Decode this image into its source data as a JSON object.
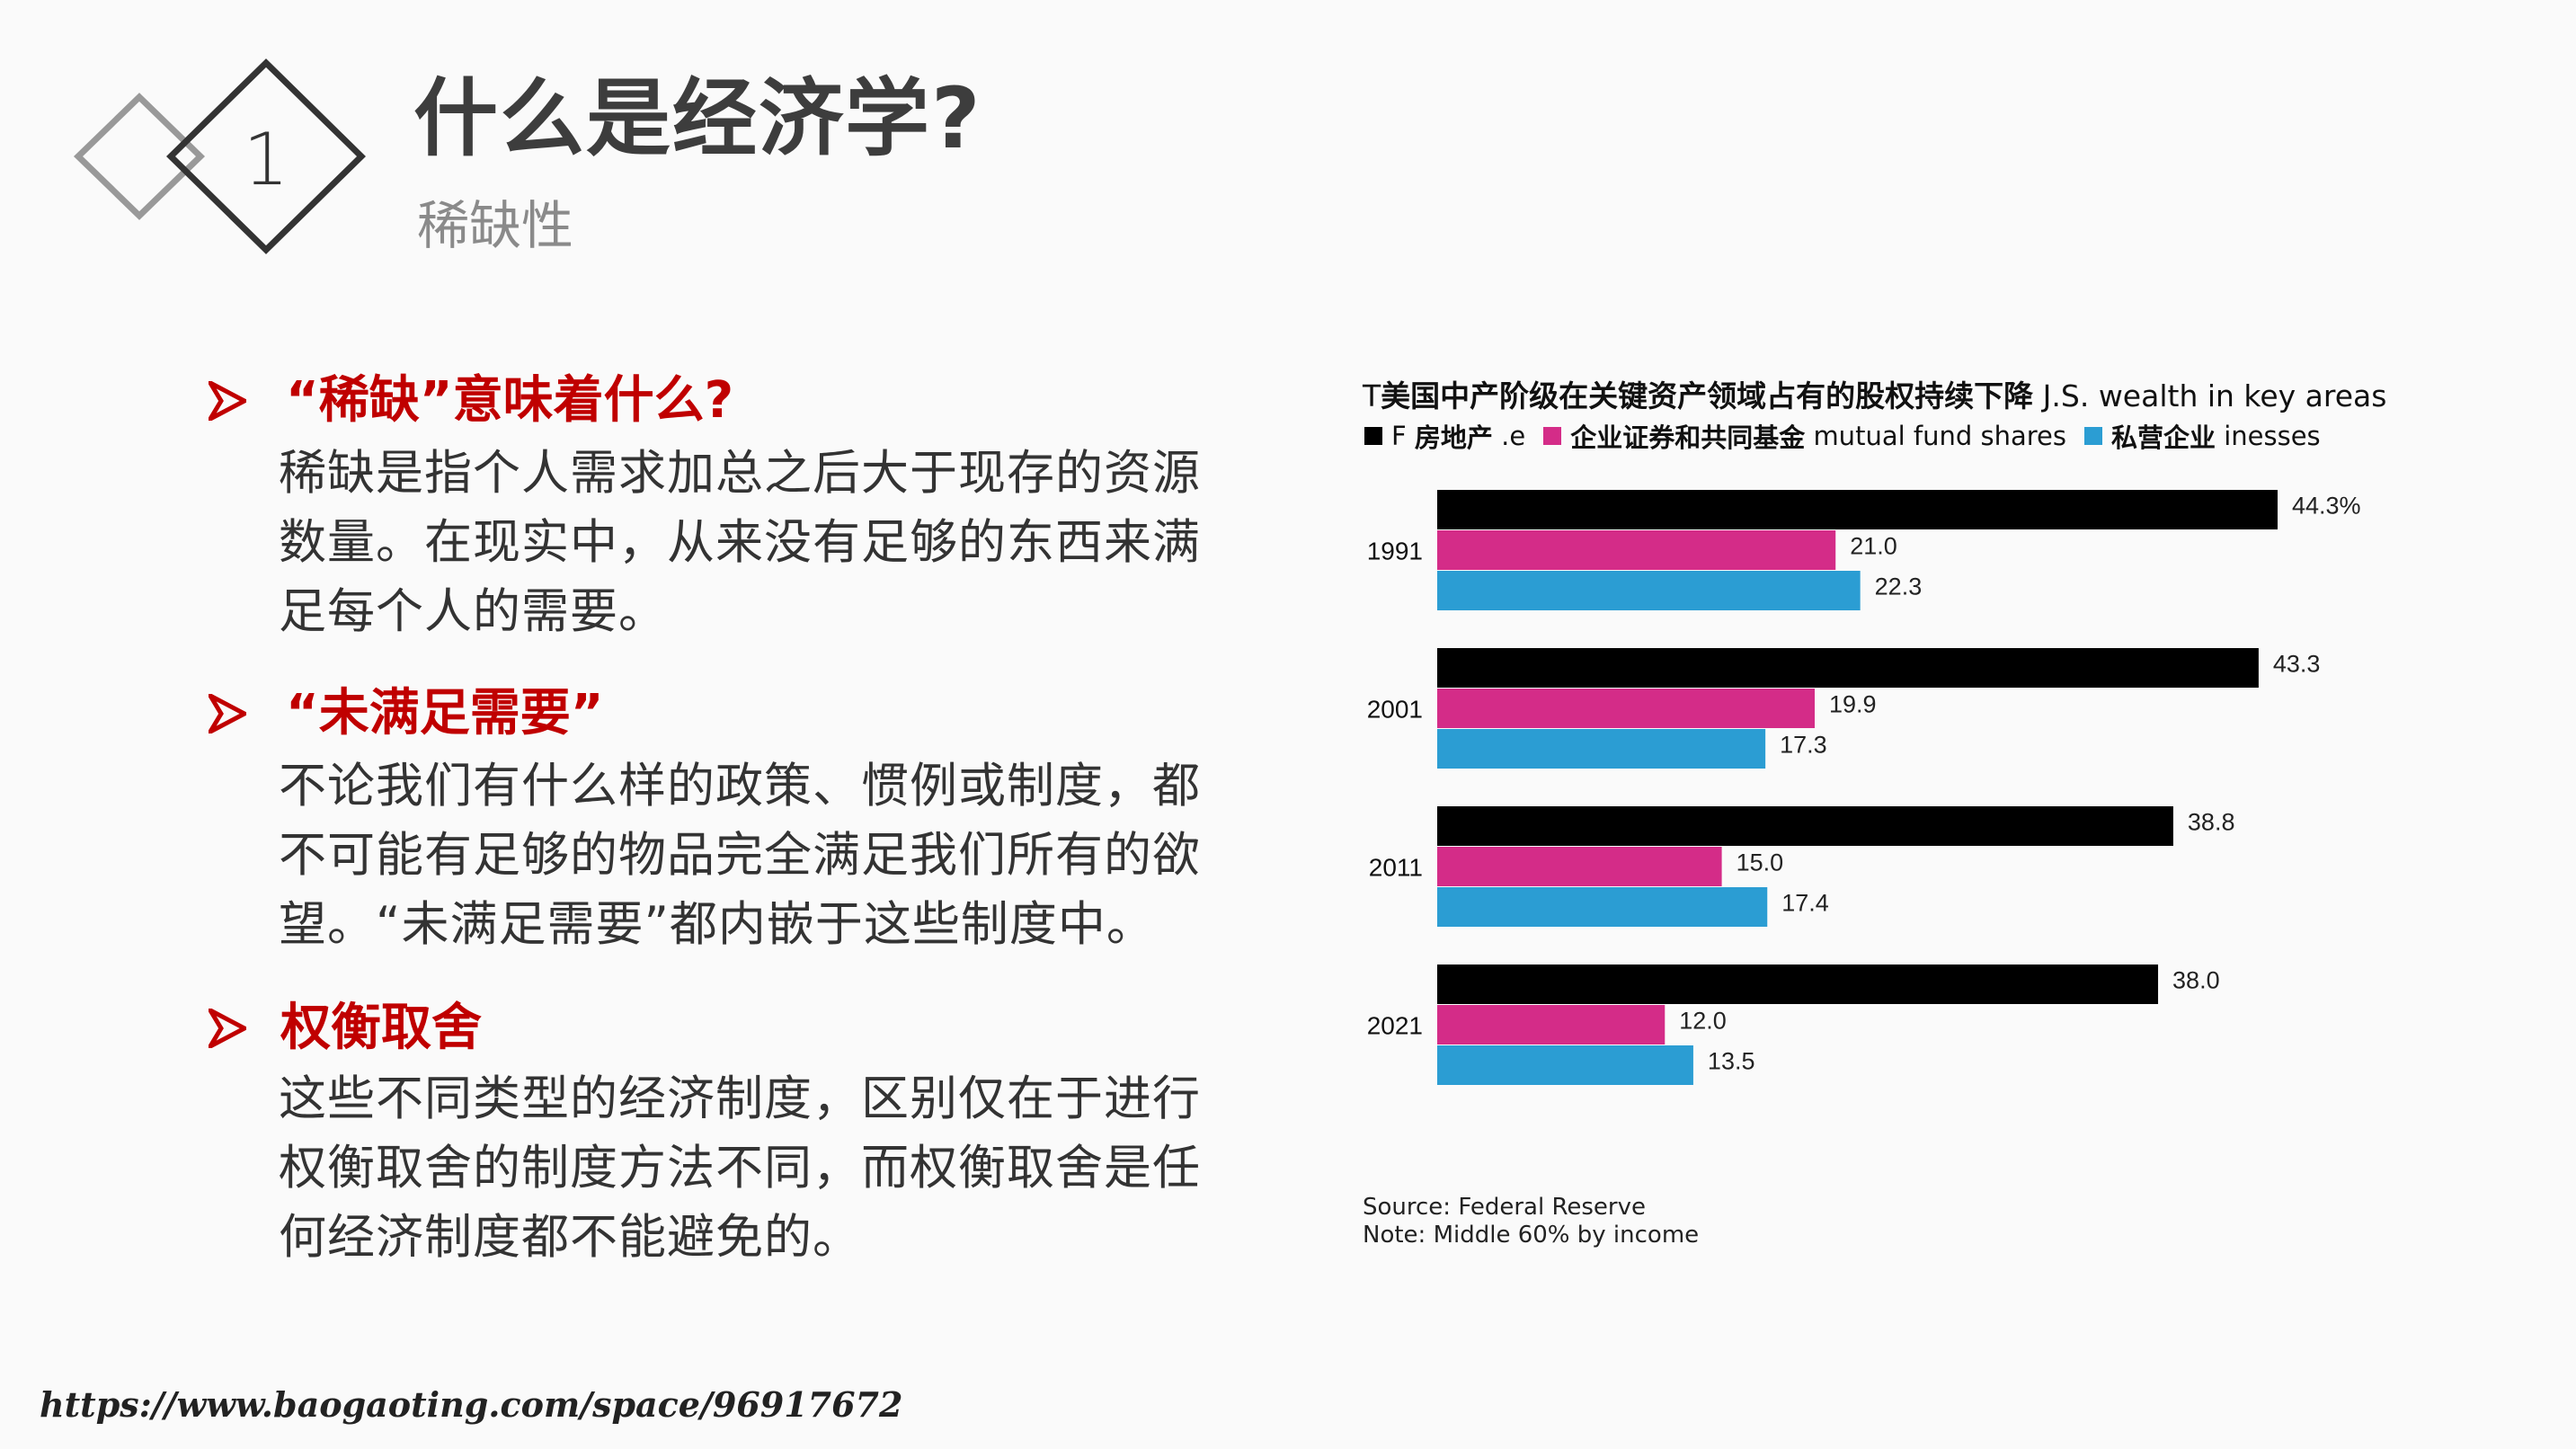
{
  "header": {
    "number": "1",
    "title": "什么是经济学?",
    "subtitle": "稀缺性"
  },
  "sections": [
    {
      "heading": "“稀缺”意味着什么?",
      "lines": [
        "稀缺是指个人需求加总之后大于现存的资源",
        "数量。在现实中，从来没有足够的东西来满",
        "足每个人的需要。"
      ]
    },
    {
      "heading": "“未满足需要”",
      "lines": [
        "不论我们有什么样的政策、惯例或制度，都",
        "不可能有足够的物品完全满足我们所有的欲",
        "望。“未满足需要”都内嵌于这些制度中。"
      ]
    },
    {
      "heading": "权衡取舍",
      "lines": [
        "这些不同类型的经济制度，区别仅在于进行",
        "权衡取舍的制度方法不同，而权衡取舍是任",
        "何经济制度都不能避免的。"
      ]
    }
  ],
  "colors": {
    "heading": "#c00000",
    "title": "#3d3d3d"
  },
  "chart_data": {
    "type": "bar",
    "orientation": "horizontal",
    "title_prefix": "T",
    "title_cn": "美国中产阶级在关键资产领域占有的股权持续下降",
    "title_en": "J.S. wealth in key areas",
    "categories": [
      "1991",
      "2001",
      "2011",
      "2021"
    ],
    "series": [
      {
        "name": "F 房地产 .e",
        "name_prefix": "F",
        "name_cn": "房地产",
        "name_en": ".e",
        "color": "#000000",
        "values": [
          44.3,
          43.3,
          38.8,
          38.0
        ],
        "labels": [
          "44.3%",
          "43.3",
          "38.8",
          "38.0"
        ]
      },
      {
        "name": "企业证券和共同基金 mutual fund shares",
        "name_cn": "企业证券和共同基金",
        "name_en": "mutual fund shares",
        "color": "#d42c88",
        "values": [
          21.0,
          19.9,
          15.0,
          12.0
        ],
        "labels": [
          "21.0",
          "19.9",
          "15.0",
          "12.0"
        ]
      },
      {
        "name": "私营企业 inesses",
        "name_cn": "私营企业",
        "name_en": "inesses",
        "color": "#2b9dd3",
        "values": [
          22.3,
          17.3,
          17.4,
          13.5
        ],
        "labels": [
          "22.3",
          "17.3",
          "17.4",
          "13.5"
        ]
      }
    ],
    "unit": "%",
    "legend_position": "top-left",
    "grid": false,
    "source": "Source: Federal Reserve",
    "note": "Note: Middle 60% by income"
  },
  "footer": {
    "url": "https://www.baogaoting.com/space/96917672"
  }
}
